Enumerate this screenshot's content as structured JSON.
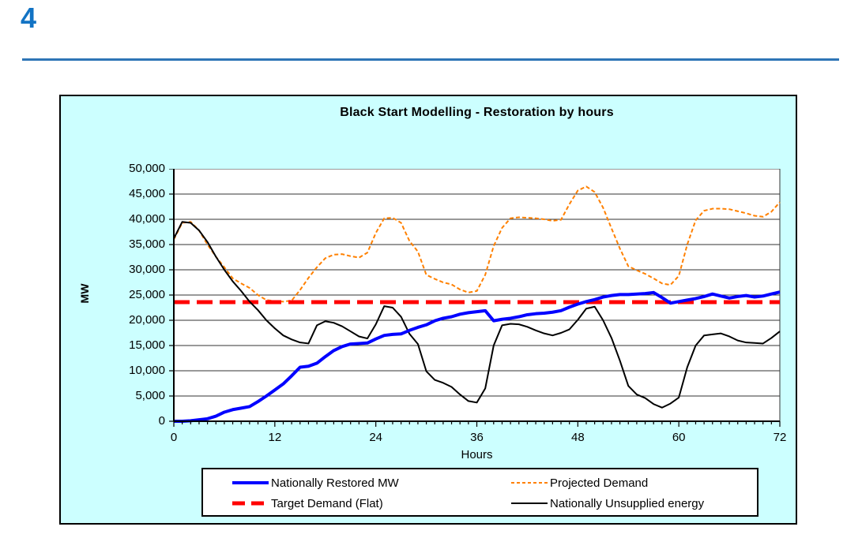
{
  "page": {
    "number": "4",
    "number_color": "#1273C4",
    "rule_color": "#2E75B6"
  },
  "chart": {
    "title": "Black Start Modelling - Restoration by hours",
    "background": "#CCFFFF",
    "plot_background": "#FFFFFF",
    "xlabel": "Hours",
    "ylabel": "MW"
  },
  "chart_data": {
    "type": "line",
    "title": "Black Start Modelling - Restoration by hours",
    "xlabel": "Hours",
    "ylabel": "MW",
    "x_range": [
      0,
      72
    ],
    "x_step": 1,
    "x_major_ticks": [
      0,
      12,
      24,
      36,
      48,
      60,
      72
    ],
    "y_range": [
      0,
      50000
    ],
    "y_tick_step": 5000,
    "y_tick_labels": [
      "0",
      "5,000",
      "10,000",
      "15,000",
      "20,000",
      "25,000",
      "30,000",
      "35,000",
      "40,000",
      "45,000",
      "50,000"
    ],
    "grid": "horizontal",
    "legend_position": "bottom",
    "series": [
      {
        "name": "Nationally Restored MW",
        "color": "#0000FF",
        "stroke_width": 4,
        "dasharray": "",
        "draw_order": 4,
        "values": [
          0,
          0,
          100,
          300,
          500,
          1000,
          1800,
          2300,
          2600,
          2900,
          3900,
          5000,
          6200,
          7400,
          9000,
          10700,
          10900,
          11500,
          12800,
          14000,
          14800,
          15300,
          15400,
          15500,
          16300,
          17000,
          17200,
          17300,
          18000,
          18600,
          19100,
          19900,
          20400,
          20700,
          21200,
          21500,
          21700,
          21900,
          19900,
          20200,
          20400,
          20700,
          21100,
          21300,
          21400,
          21600,
          21900,
          22600,
          23200,
          23700,
          24100,
          24600,
          24900,
          25100,
          25100,
          25200,
          25300,
          25500,
          24500,
          23400,
          23700,
          24000,
          24300,
          24700,
          25200,
          24800,
          24400,
          24700,
          24900,
          24600,
          24800,
          25200,
          25600
        ]
      },
      {
        "name": "Projected Demand",
        "color": "#FF8000",
        "stroke_width": 2,
        "dasharray": "5,3",
        "draw_order": 1,
        "values": [
          36000,
          39300,
          39500,
          37800,
          35000,
          32600,
          30500,
          28300,
          27300,
          26400,
          25000,
          24000,
          23800,
          23700,
          23900,
          26000,
          28400,
          30500,
          32300,
          33000,
          33100,
          32700,
          32400,
          33400,
          37300,
          40200,
          40300,
          39300,
          35700,
          33600,
          29000,
          28200,
          27500,
          27100,
          26100,
          25500,
          25800,
          29000,
          34700,
          38300,
          40200,
          40400,
          40300,
          40200,
          40000,
          39700,
          39900,
          43000,
          45700,
          46500,
          45400,
          42300,
          38200,
          34200,
          30700,
          29900,
          29200,
          28300,
          27300,
          27000,
          28800,
          35000,
          39800,
          41700,
          42100,
          42100,
          42000,
          41600,
          41200,
          40700,
          40500,
          41500,
          43400
        ]
      },
      {
        "name": "Target Demand (Flat)",
        "color": "#FF0000",
        "stroke_width": 5,
        "dasharray": "20,9",
        "draw_order": 2,
        "flat_value": 23600
      },
      {
        "name": "Nationally Unsupplied energy",
        "color": "#000000",
        "stroke_width": 2,
        "dasharray": "",
        "draw_order": 3,
        "values": [
          36200,
          39500,
          39300,
          37800,
          35500,
          32600,
          30000,
          27700,
          25800,
          23700,
          22000,
          20000,
          18400,
          17000,
          16200,
          15600,
          15400,
          19000,
          19800,
          19500,
          18800,
          17800,
          16800,
          16400,
          19200,
          22800,
          22500,
          20700,
          17300,
          15300,
          9900,
          8200,
          7600,
          6800,
          5300,
          4000,
          3700,
          6500,
          15000,
          19000,
          19300,
          19200,
          18700,
          18000,
          17400,
          17000,
          17500,
          18200,
          20100,
          22300,
          22700,
          20000,
          16500,
          12000,
          7000,
          5300,
          4600,
          3400,
          2700,
          3500,
          4700,
          10700,
          15000,
          17000,
          17200,
          17400,
          16800,
          16000,
          15600,
          15500,
          15400,
          16500,
          17800
        ]
      }
    ]
  }
}
